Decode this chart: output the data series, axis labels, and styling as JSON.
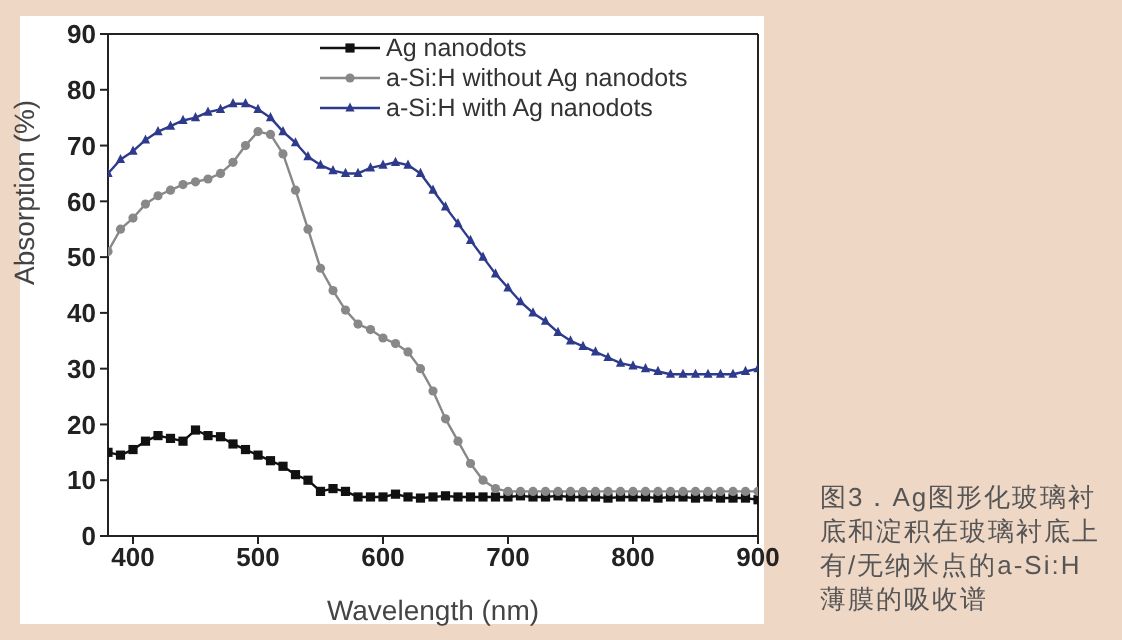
{
  "chart_data": {
    "type": "line",
    "xlabel": "Wavelength (nm)",
    "ylabel": "Absorption (%)",
    "annotations": [
      "图3．Ag图形化玻璃衬底和淀积在玻璃衬底上有/无纳米点的a-Si:H薄膜的吸收谱"
    ],
    "x": [
      380,
      390,
      400,
      410,
      420,
      430,
      440,
      450,
      460,
      470,
      480,
      490,
      500,
      510,
      520,
      530,
      540,
      550,
      560,
      570,
      580,
      590,
      600,
      610,
      620,
      630,
      640,
      650,
      660,
      670,
      680,
      690,
      700,
      710,
      720,
      730,
      740,
      750,
      760,
      770,
      780,
      790,
      800,
      810,
      820,
      830,
      840,
      850,
      860,
      870,
      880,
      890,
      900
    ],
    "series": [
      {
        "name": "Ag nanodots",
        "color": "#111111",
        "marker": "square",
        "values": [
          15,
          14.5,
          15.5,
          17,
          18,
          17.5,
          17,
          19,
          18,
          17.8,
          16.5,
          15.5,
          14.5,
          13.5,
          12.5,
          11,
          10,
          8,
          8.5,
          8,
          7,
          7,
          7,
          7.5,
          7,
          6.8,
          7,
          7.2,
          7,
          7,
          7,
          7,
          7,
          7.2,
          7,
          7,
          7.2,
          7,
          7,
          7,
          6.8,
          7,
          7,
          7,
          6.8,
          7,
          7,
          6.8,
          7,
          6.8,
          6.8,
          6.8,
          6.5
        ]
      },
      {
        "name": "a-Si:H without Ag nanodots",
        "color": "#888888",
        "marker": "circle",
        "values": [
          51,
          55,
          57,
          59.5,
          61,
          62,
          63,
          63.5,
          64,
          65,
          67,
          70,
          72.5,
          72,
          68.5,
          62,
          55,
          48,
          44,
          40.5,
          38,
          37,
          35.5,
          34.5,
          33,
          30,
          26,
          21,
          17,
          13,
          10,
          8.5,
          8,
          8,
          8,
          8,
          8,
          8,
          8,
          8,
          8,
          8,
          8,
          8,
          8,
          8,
          8,
          8,
          8,
          8,
          8,
          8,
          8
        ]
      },
      {
        "name": "a-Si:H with Ag nanodots",
        "color": "#2e3a8c",
        "marker": "triangle",
        "values": [
          65,
          67.5,
          69,
          71,
          72.5,
          73.5,
          74.5,
          75,
          76,
          76.5,
          77.5,
          77.5,
          76.5,
          75,
          72.5,
          70.5,
          68,
          66.5,
          65.5,
          65,
          65,
          66,
          66.5,
          67,
          66.5,
          65,
          62,
          59,
          56,
          53,
          50,
          47,
          44.5,
          42,
          40,
          38.5,
          36.5,
          35,
          34,
          33,
          32,
          31,
          30.5,
          30,
          29.5,
          29,
          29,
          29,
          29,
          29,
          29,
          29.5,
          30
        ]
      }
    ],
    "xlim": [
      380,
      900
    ],
    "xticks": [
      400,
      500,
      600,
      700,
      800,
      900
    ],
    "ylim": [
      0,
      90
    ],
    "yticks": [
      0,
      10,
      20,
      30,
      40,
      50,
      60,
      70,
      80,
      90
    ],
    "legend": "top right"
  }
}
